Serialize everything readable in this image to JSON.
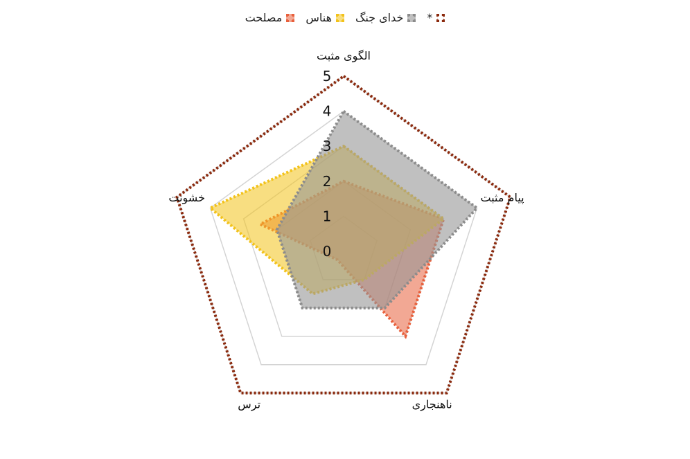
{
  "chart_data": {
    "type": "radar",
    "axes": [
      "الگوی مثبت",
      "پیام مثبت",
      "ناهنجاری",
      "ترس",
      "خشونت"
    ],
    "ticks": [
      "0",
      "1",
      "2",
      "3",
      "4",
      "5"
    ],
    "rmin": 0,
    "rmax": 5,
    "legend_position": "top",
    "series": [
      {
        "name": "مصلحت",
        "values": [
          2,
          3,
          3,
          0.3,
          2.5
        ],
        "color": "#e8603c",
        "fill": "rgba(232,96,60,0.55)"
      },
      {
        "name": "هناس",
        "values": [
          3,
          3,
          1,
          1.5,
          4
        ],
        "color": "#f2c21a",
        "fill": "rgba(242,194,26,0.55)"
      },
      {
        "name": "خدای جنگ",
        "values": [
          4,
          4,
          2,
          2,
          2
        ],
        "color": "#8c8c8c",
        "fill": "rgba(150,150,150,0.6)"
      },
      {
        "name": "*",
        "values": [
          5,
          5,
          5,
          5,
          5
        ],
        "color": "#8b2a0e",
        "fill": "none"
      }
    ]
  }
}
